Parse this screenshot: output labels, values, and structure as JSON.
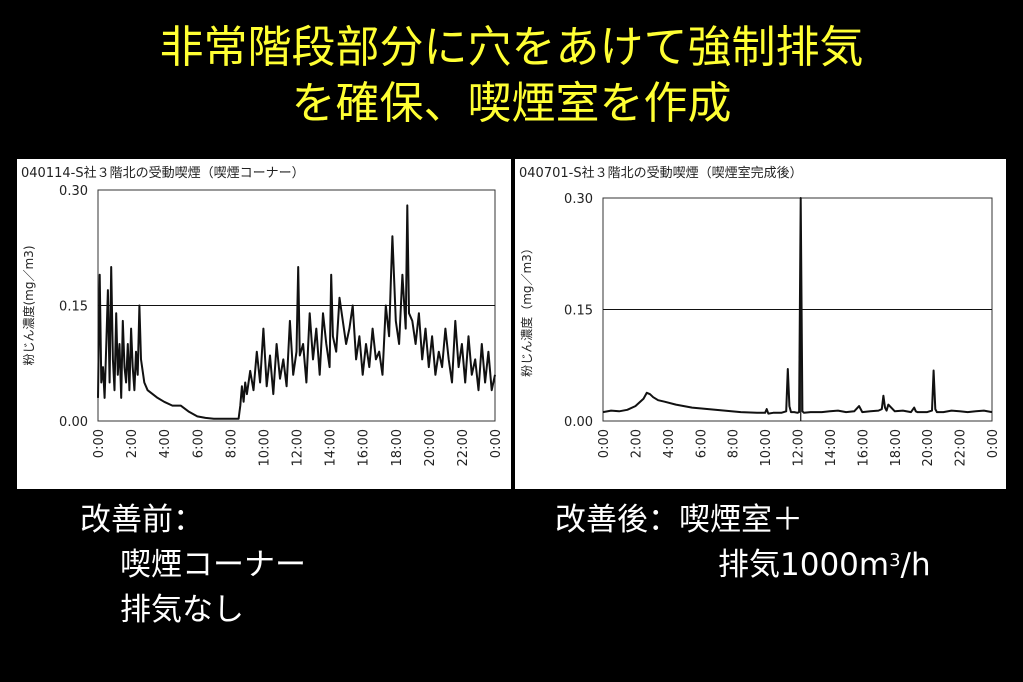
{
  "slide": {
    "title_line1": "非常階段部分に穴をあけて強制排気",
    "title_line2": "を確保、喫煙室を作成",
    "caption_left": {
      "line1": "改善前：",
      "line2": "喫煙コーナー",
      "line3": "排気なし"
    },
    "caption_right": {
      "line1": "改善後：喫煙室＋",
      "line2_prefix": "排気1000m",
      "line2_sup": "3",
      "line2_suffix": "/h"
    },
    "colors": {
      "background": "#000000",
      "title": "#ffff33",
      "caption": "#ffffff",
      "panel": "#ffffff"
    }
  },
  "chart_data": [
    {
      "type": "line",
      "title": "040114-S社３階北の受動喫煙（喫煙コーナー）",
      "xlabel": "",
      "ylabel": "粉じん濃度(mg／m3)",
      "ylim": [
        0,
        0.3
      ],
      "yticks": [
        "0.00",
        "0.15",
        "0.30"
      ],
      "xlim": [
        0,
        24
      ],
      "xticks": [
        "0:00",
        "2:00",
        "4:00",
        "6:00",
        "8:00",
        "10:00",
        "12:00",
        "14:00",
        "16:00",
        "18:00",
        "20:00",
        "22:00",
        "0:00"
      ],
      "reference_line": 0.15,
      "grid": false,
      "series": [
        {
          "x": [
            0,
            0.1,
            0.2,
            0.3,
            0.4,
            0.5,
            0.6,
            0.7,
            0.8,
            0.9,
            1.0,
            1.1,
            1.2,
            1.3,
            1.4,
            1.5,
            1.6,
            1.7,
            1.8,
            1.9,
            2.0,
            2.1,
            2.2,
            2.3,
            2.4,
            2.5,
            2.6,
            2.8,
            3.0,
            3.3,
            3.6,
            4.0,
            4.5,
            5.0,
            5.5,
            6.0,
            6.5,
            7.0,
            7.5,
            8.0,
            8.3,
            8.5,
            8.6,
            8.7,
            8.8,
            8.9,
            9.0,
            9.2,
            9.4,
            9.6,
            9.8,
            10.0,
            10.2,
            10.4,
            10.6,
            10.8,
            11.0,
            11.2,
            11.4,
            11.6,
            11.8,
            12.0,
            12.1,
            12.2,
            12.4,
            12.6,
            12.8,
            13.0,
            13.2,
            13.4,
            13.6,
            13.8,
            14.0,
            14.1,
            14.2,
            14.4,
            14.6,
            14.8,
            15.0,
            15.2,
            15.4,
            15.6,
            15.8,
            16.0,
            16.2,
            16.4,
            16.6,
            16.8,
            17.0,
            17.2,
            17.4,
            17.6,
            17.7,
            17.8,
            18.0,
            18.2,
            18.4,
            18.6,
            18.7,
            18.8,
            19.0,
            19.2,
            19.4,
            19.6,
            19.8,
            20.0,
            20.2,
            20.4,
            20.6,
            20.8,
            21.0,
            21.2,
            21.4,
            21.6,
            21.8,
            22.0,
            22.2,
            22.4,
            22.6,
            22.8,
            23.0,
            23.2,
            23.4,
            23.6,
            23.8,
            24.0
          ],
          "values": [
            0.03,
            0.19,
            0.05,
            0.07,
            0.03,
            0.1,
            0.17,
            0.05,
            0.2,
            0.08,
            0.04,
            0.14,
            0.06,
            0.1,
            0.03,
            0.13,
            0.07,
            0.05,
            0.1,
            0.04,
            0.12,
            0.07,
            0.04,
            0.09,
            0.06,
            0.15,
            0.08,
            0.05,
            0.04,
            0.035,
            0.03,
            0.025,
            0.02,
            0.02,
            0.012,
            0.006,
            0.004,
            0.003,
            0.003,
            0.003,
            0.003,
            0.003,
            0.02,
            0.045,
            0.025,
            0.05,
            0.035,
            0.065,
            0.04,
            0.09,
            0.05,
            0.12,
            0.045,
            0.085,
            0.035,
            0.1,
            0.055,
            0.08,
            0.045,
            0.13,
            0.06,
            0.09,
            0.2,
            0.085,
            0.1,
            0.05,
            0.14,
            0.08,
            0.12,
            0.06,
            0.14,
            0.1,
            0.07,
            0.19,
            0.11,
            0.09,
            0.16,
            0.13,
            0.1,
            0.12,
            0.15,
            0.08,
            0.11,
            0.06,
            0.1,
            0.07,
            0.12,
            0.08,
            0.09,
            0.06,
            0.15,
            0.11,
            0.18,
            0.24,
            0.13,
            0.1,
            0.19,
            0.12,
            0.28,
            0.14,
            0.13,
            0.1,
            0.14,
            0.08,
            0.12,
            0.07,
            0.11,
            0.06,
            0.09,
            0.07,
            0.12,
            0.08,
            0.05,
            0.13,
            0.07,
            0.1,
            0.05,
            0.11,
            0.06,
            0.08,
            0.04,
            0.1,
            0.05,
            0.09,
            0.04,
            0.06
          ]
        }
      ]
    },
    {
      "type": "line",
      "title": "040701-S社３階北の受動喫煙（喫煙室完成後）",
      "xlabel": "",
      "ylabel": "粉じん濃度（mg／m3）",
      "ylim": [
        0,
        0.3
      ],
      "yticks": [
        "0.00",
        "0.15",
        "0.30"
      ],
      "xlim": [
        0,
        24
      ],
      "xticks": [
        "0:00",
        "2:00",
        "4:00",
        "6:00",
        "8:00",
        "10:00",
        "12:00",
        "14:00",
        "16:00",
        "18:00",
        "20:00",
        "22:00",
        "0:00"
      ],
      "reference_line": 0.15,
      "vertical_reference": 12.2,
      "grid": false,
      "series": [
        {
          "x": [
            0,
            0.5,
            1.0,
            1.5,
            2.0,
            2.5,
            2.7,
            2.9,
            3.1,
            3.4,
            3.8,
            4.5,
            5.5,
            6.5,
            7.5,
            8.5,
            9.5,
            10.0,
            10.1,
            10.2,
            10.5,
            11.0,
            11.3,
            11.4,
            11.5,
            11.6,
            11.8,
            12.0,
            12.1,
            12.2,
            12.3,
            12.4,
            12.8,
            13.5,
            14.0,
            14.5,
            15.0,
            15.5,
            15.8,
            16.0,
            16.5,
            17.0,
            17.2,
            17.3,
            17.4,
            17.5,
            17.6,
            18.0,
            18.5,
            19.0,
            19.2,
            19.3,
            19.4,
            20.0,
            20.3,
            20.4,
            20.5,
            20.6,
            21.0,
            21.5,
            22.0,
            22.5,
            23.0,
            23.5,
            24.0
          ],
          "values": [
            0.012,
            0.014,
            0.013,
            0.015,
            0.02,
            0.03,
            0.038,
            0.036,
            0.032,
            0.028,
            0.026,
            0.022,
            0.018,
            0.016,
            0.014,
            0.012,
            0.011,
            0.011,
            0.016,
            0.01,
            0.011,
            0.011,
            0.013,
            0.07,
            0.02,
            0.012,
            0.012,
            0.011,
            0.012,
            0.3,
            0.013,
            0.011,
            0.012,
            0.012,
            0.013,
            0.014,
            0.012,
            0.013,
            0.02,
            0.012,
            0.013,
            0.014,
            0.016,
            0.034,
            0.018,
            0.014,
            0.022,
            0.013,
            0.014,
            0.012,
            0.018,
            0.013,
            0.012,
            0.012,
            0.014,
            0.068,
            0.016,
            0.012,
            0.012,
            0.014,
            0.013,
            0.012,
            0.013,
            0.014,
            0.012
          ]
        }
      ]
    }
  ]
}
